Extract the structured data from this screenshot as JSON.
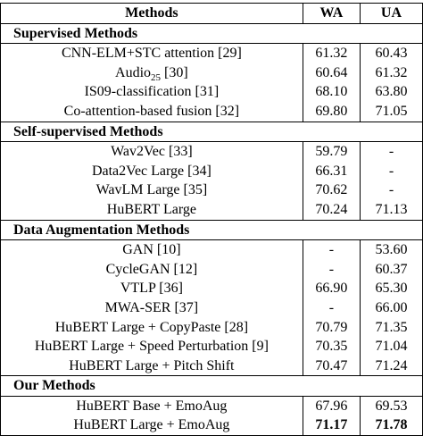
{
  "table": {
    "headers": {
      "method": "Methods",
      "wa": "WA",
      "ua": "UA"
    },
    "sections": [
      {
        "title": "Supervised Methods",
        "rows": [
          {
            "method": "CNN-ELM+STC attention [29]",
            "wa": "61.32",
            "ua": "60.43"
          },
          {
            "method": "Audio25 [30]",
            "wa": "60.64",
            "ua": "61.32"
          },
          {
            "method": "IS09-classification [31]",
            "wa": "68.10",
            "ua": "63.80"
          },
          {
            "method": "Co-attention-based fusion [32]",
            "wa": "69.80",
            "ua": "71.05"
          }
        ]
      },
      {
        "title": "Self-supervised Methods",
        "rows": [
          {
            "method": "Wav2Vec [33]",
            "wa": "59.79",
            "ua": "-"
          },
          {
            "method": "Data2Vec Large [34]",
            "wa": "66.31",
            "ua": "-"
          },
          {
            "method": "WavLM Large [35]",
            "wa": "70.62",
            "ua": "-"
          },
          {
            "method": "HuBERT Large",
            "wa": "70.24",
            "ua": "71.13"
          }
        ]
      },
      {
        "title": "Data Augmentation Methods",
        "rows": [
          {
            "method": "GAN [10]",
            "wa": "-",
            "ua": "53.60"
          },
          {
            "method": "CycleGAN [12]",
            "wa": "-",
            "ua": "60.37"
          },
          {
            "method": "VTLP [36]",
            "wa": "66.90",
            "ua": "65.30"
          },
          {
            "method": "MWA-SER [37]",
            "wa": "-",
            "ua": "66.00"
          },
          {
            "method": "HuBERT Large + CopyPaste [28]",
            "wa": "70.79",
            "ua": "71.35"
          },
          {
            "method": "HuBERT Large + Speed Perturbation [9]",
            "wa": "70.35",
            "ua": "71.04"
          },
          {
            "method": "HuBERT Large + Pitch Shift",
            "wa": "70.47",
            "ua": "71.24"
          }
        ]
      },
      {
        "title": "Our Methods",
        "rows": [
          {
            "method": "HuBERT Base + EmoAug",
            "wa": "67.96",
            "ua": "69.53"
          },
          {
            "method": "HuBERT Large + EmoAug",
            "wa": "71.17",
            "ua": "71.78"
          }
        ]
      }
    ]
  }
}
